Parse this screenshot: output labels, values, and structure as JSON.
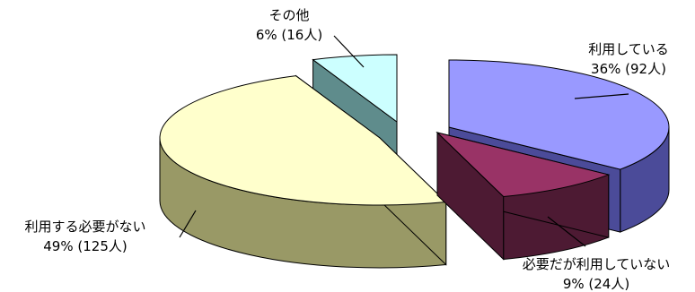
{
  "chart_data": {
    "type": "pie",
    "style": "3d-exploded",
    "title": "",
    "legend": "none",
    "slices": [
      {
        "name": "利用している",
        "value": 92,
        "percent": 36,
        "percent_label": "36% (92人)",
        "top_color": "#9999FF",
        "side_color": "#4B4B99"
      },
      {
        "name": "必要だが利用していない",
        "value": 24,
        "percent": 9,
        "percent_label": "9% (24人)",
        "top_color": "#993366",
        "side_color": "#4D1A33"
      },
      {
        "name": "利用する必要がない",
        "value": 125,
        "percent": 49,
        "percent_label": "49% (125人)",
        "top_color": "#FFFFCC",
        "side_color": "#999966"
      },
      {
        "name": "その他",
        "value": 16,
        "percent": 6,
        "percent_label": "6% (16人)",
        "top_color": "#CCFFFF",
        "side_color": "#5F8C8C"
      }
    ]
  }
}
